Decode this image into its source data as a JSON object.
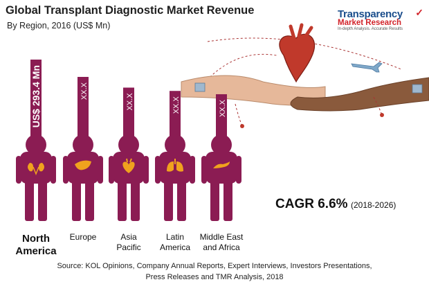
{
  "title": "Global Transplant Diagnostic Market Revenue",
  "subtitle": "By Region, 2016 (US$ Mn)",
  "logo": {
    "line1": "Transparency",
    "line2": "Market Research",
    "tagline": "In-depth Analysis. Accurate Results"
  },
  "colors": {
    "figure": "#8b1c53",
    "organ": "#f0a21e",
    "text": "#1f1f1f"
  },
  "chart_data": {
    "type": "bar",
    "title": "Global Transplant Diagnostic Market Revenue",
    "subtitle": "By Region, 2016 (US$ Mn)",
    "categories": [
      "North America",
      "Europe",
      "Asia Pacific",
      "Latin America",
      "Middle East and Africa"
    ],
    "category_lines": [
      [
        "North",
        "America"
      ],
      [
        "Europe"
      ],
      [
        "Asia",
        "Pacific"
      ],
      [
        "Latin",
        "America"
      ],
      [
        "Middle East",
        "and Africa"
      ]
    ],
    "bold_category": [
      true,
      false,
      false,
      false,
      false
    ],
    "organ_icons": [
      "kidney-icon",
      "liver-icon",
      "heart-icon",
      "lungs-icon",
      "pancreas-icon"
    ],
    "values": [
      293.4,
      null,
      null,
      null,
      null
    ],
    "relative_heights": [
      1.0,
      0.79,
      0.66,
      0.62,
      0.58
    ],
    "data_labels": [
      "US$ 293.4 Mn",
      "XX.X",
      "XX.X",
      "XX.X",
      "XX.X"
    ],
    "unit": "US$ Mn"
  },
  "cagr": {
    "label": "CAGR 6.6%",
    "period": "(2018-2026)"
  },
  "source": {
    "line1": "Source: KOL Opinions, Company Annual Reports, Expert Interviews, Investors Presentations,",
    "line2": "Press Releases and TMR Analysis, 2018"
  }
}
